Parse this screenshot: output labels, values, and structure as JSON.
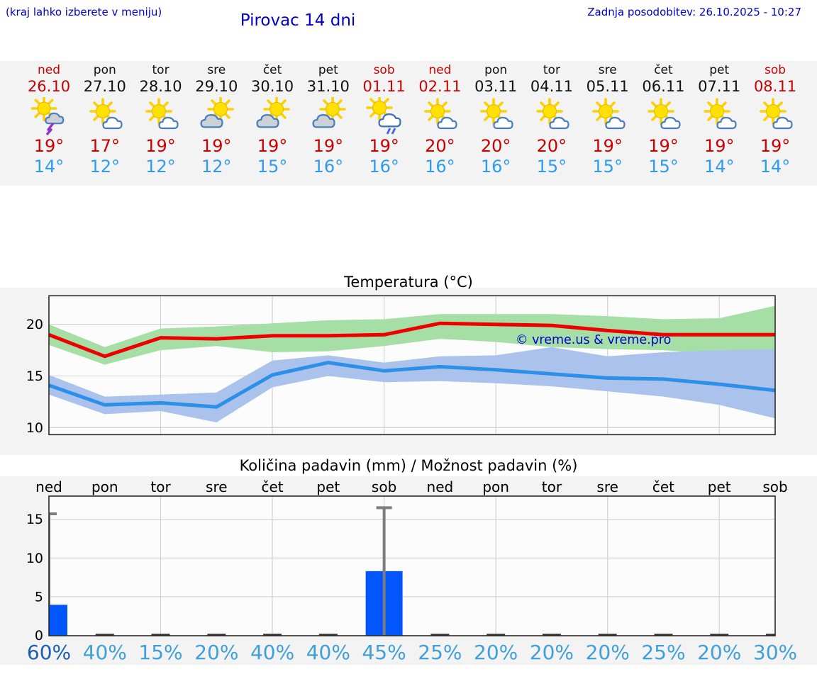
{
  "header": {
    "hint": "(kraj lahko izberete v meniju)",
    "title": "Pirovac 14 dni",
    "updated": "Zadnja posodobitev: 26.10.2025 - 10:27"
  },
  "days": [
    {
      "name": "ned",
      "date": "26.10",
      "red": true,
      "icon": "thunderstorm-icon",
      "high": "19°",
      "low": "14°"
    },
    {
      "name": "pon",
      "date": "27.10",
      "red": false,
      "icon": "partly-cloudy-icon",
      "high": "17°",
      "low": "12°"
    },
    {
      "name": "tor",
      "date": "28.10",
      "red": false,
      "icon": "partly-cloudy-icon",
      "high": "19°",
      "low": "12°"
    },
    {
      "name": "sre",
      "date": "29.10",
      "red": false,
      "icon": "cloud-sun-icon",
      "high": "19°",
      "low": "12°"
    },
    {
      "name": "čet",
      "date": "30.10",
      "red": false,
      "icon": "cloud-sun-icon",
      "high": "19°",
      "low": "15°"
    },
    {
      "name": "pet",
      "date": "31.10",
      "red": false,
      "icon": "cloud-sun-icon",
      "high": "19°",
      "low": "16°"
    },
    {
      "name": "sob",
      "date": "01.11",
      "red": true,
      "icon": "sun-rain-icon",
      "high": "19°",
      "low": "16°"
    },
    {
      "name": "ned",
      "date": "02.11",
      "red": true,
      "icon": "partly-cloudy-icon",
      "high": "20°",
      "low": "16°"
    },
    {
      "name": "pon",
      "date": "03.11",
      "red": false,
      "icon": "partly-cloudy-icon",
      "high": "20°",
      "low": "16°"
    },
    {
      "name": "tor",
      "date": "04.11",
      "red": false,
      "icon": "partly-cloudy-icon",
      "high": "20°",
      "low": "15°"
    },
    {
      "name": "sre",
      "date": "05.11",
      "red": false,
      "icon": "partly-cloudy-icon",
      "high": "19°",
      "low": "15°"
    },
    {
      "name": "čet",
      "date": "06.11",
      "red": false,
      "icon": "partly-cloudy-icon",
      "high": "19°",
      "low": "15°"
    },
    {
      "name": "pet",
      "date": "07.11",
      "red": false,
      "icon": "partly-cloudy-icon",
      "high": "19°",
      "low": "14°"
    },
    {
      "name": "sob",
      "date": "08.11",
      "red": true,
      "icon": "partly-cloudy-icon",
      "high": "19°",
      "low": "14°"
    }
  ],
  "chart_data": [
    {
      "type": "line",
      "title": "Temperatura (°C)",
      "watermark": "© vreme.us & vreme.pro",
      "categories": [
        "26.10",
        "27.10",
        "28.10",
        "29.10",
        "30.10",
        "31.10",
        "01.11",
        "02.11",
        "03.11",
        "04.11",
        "05.11",
        "06.11",
        "07.11",
        "08.11"
      ],
      "yticks": [
        10,
        15,
        20
      ],
      "ylim": [
        9.3,
        22.8
      ],
      "grid": true,
      "series": [
        {
          "name": "max_temp",
          "values": [
            19.0,
            16.9,
            18.7,
            18.6,
            18.9,
            18.9,
            19.0,
            20.1,
            20.0,
            19.9,
            19.4,
            19.0,
            19.0,
            19.0
          ]
        },
        {
          "name": "max_band_hi",
          "values": [
            20.0,
            17.8,
            19.6,
            19.8,
            20.1,
            20.4,
            20.5,
            21.0,
            21.0,
            21.0,
            20.8,
            20.5,
            20.6,
            21.8
          ]
        },
        {
          "name": "max_band_lo",
          "values": [
            18.0,
            16.1,
            17.5,
            17.9,
            17.3,
            17.4,
            17.9,
            18.6,
            18.3,
            17.8,
            17.6,
            17.5,
            17.1,
            16.4
          ]
        },
        {
          "name": "min_temp",
          "values": [
            14.1,
            12.2,
            12.4,
            12.0,
            15.1,
            16.3,
            15.5,
            15.9,
            15.6,
            15.2,
            14.8,
            14.7,
            14.2,
            13.6
          ]
        },
        {
          "name": "min_band_hi",
          "values": [
            15.1,
            13.0,
            13.2,
            13.4,
            16.5,
            17.0,
            16.3,
            16.9,
            17.0,
            17.8,
            16.9,
            17.3,
            17.5,
            17.6
          ]
        },
        {
          "name": "min_band_lo",
          "values": [
            13.2,
            11.3,
            11.6,
            10.5,
            13.9,
            15.0,
            14.4,
            14.5,
            14.3,
            14.0,
            13.5,
            13.0,
            12.2,
            10.9
          ]
        }
      ]
    },
    {
      "type": "bar",
      "title": "Količina padavin (mm) / Možnost padavin (%)",
      "day_labels": [
        "ned",
        "pon",
        "tor",
        "sre",
        "čet",
        "pet",
        "sob",
        "ned",
        "pon",
        "tor",
        "sre",
        "čet",
        "pet",
        "sob"
      ],
      "values_mm": [
        3.95,
        0,
        0,
        0,
        0,
        0,
        8.3,
        0,
        0,
        0,
        0,
        0,
        0,
        0
      ],
      "whisker_max": [
        15.7,
        null,
        null,
        null,
        null,
        null,
        16.5,
        null,
        null,
        null,
        null,
        null,
        null,
        null
      ],
      "probabilities": [
        "60%",
        "40%",
        "15%",
        "20%",
        "40%",
        "40%",
        "45%",
        "25%",
        "20%",
        "20%",
        "20%",
        "25%",
        "20%",
        "30%"
      ],
      "yticks": [
        0,
        5,
        10,
        15
      ],
      "ylim": [
        0,
        18
      ]
    }
  ],
  "colors": {
    "header_blue": "#0000cc",
    "day_red": "#cc0000",
    "day_black": "#111111",
    "high_red": "#cc0000",
    "low_blue": "#2e9bf0",
    "fig_bg": "#f3f3f3",
    "plot_bg": "#fcfcfc",
    "frame": "#2a2a2a",
    "grid": "#cfcfcf",
    "max_line": "#ee0000",
    "max_band": "#a6dfa6",
    "min_line": "#2e8fe8",
    "min_band": "#abc3ec",
    "bar_blue": "#0356fc",
    "whisker_gray": "#7d7d7d",
    "zero_tick": "#333333",
    "percent": "#3f9fd9",
    "percent_strong": "#1c5fae",
    "watermark": "#0000cc"
  }
}
